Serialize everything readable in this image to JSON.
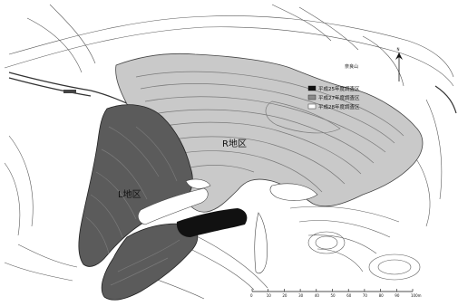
{
  "map": {
    "labels": {
      "area_r": "R地区",
      "area_l": "L地区",
      "place_name": "奈良山"
    },
    "legend": [
      {
        "label": "平成25年度調査区",
        "swatch": "#111111"
      },
      {
        "label": "平成27年度調査区",
        "swatch": "#8a8a8a"
      },
      {
        "label": "平成28年度調査区",
        "swatch": "#ffffff"
      }
    ],
    "north_arrow": "N",
    "scale": {
      "ticks": [
        "0",
        "10",
        "20",
        "30",
        "40",
        "50",
        "60",
        "70",
        "80",
        "90",
        "100m"
      ]
    },
    "colors": {
      "r_area": "#c9c9c9",
      "l_area": "#5b5b5b",
      "h25": "#111111",
      "paper": "#ffffff"
    }
  }
}
